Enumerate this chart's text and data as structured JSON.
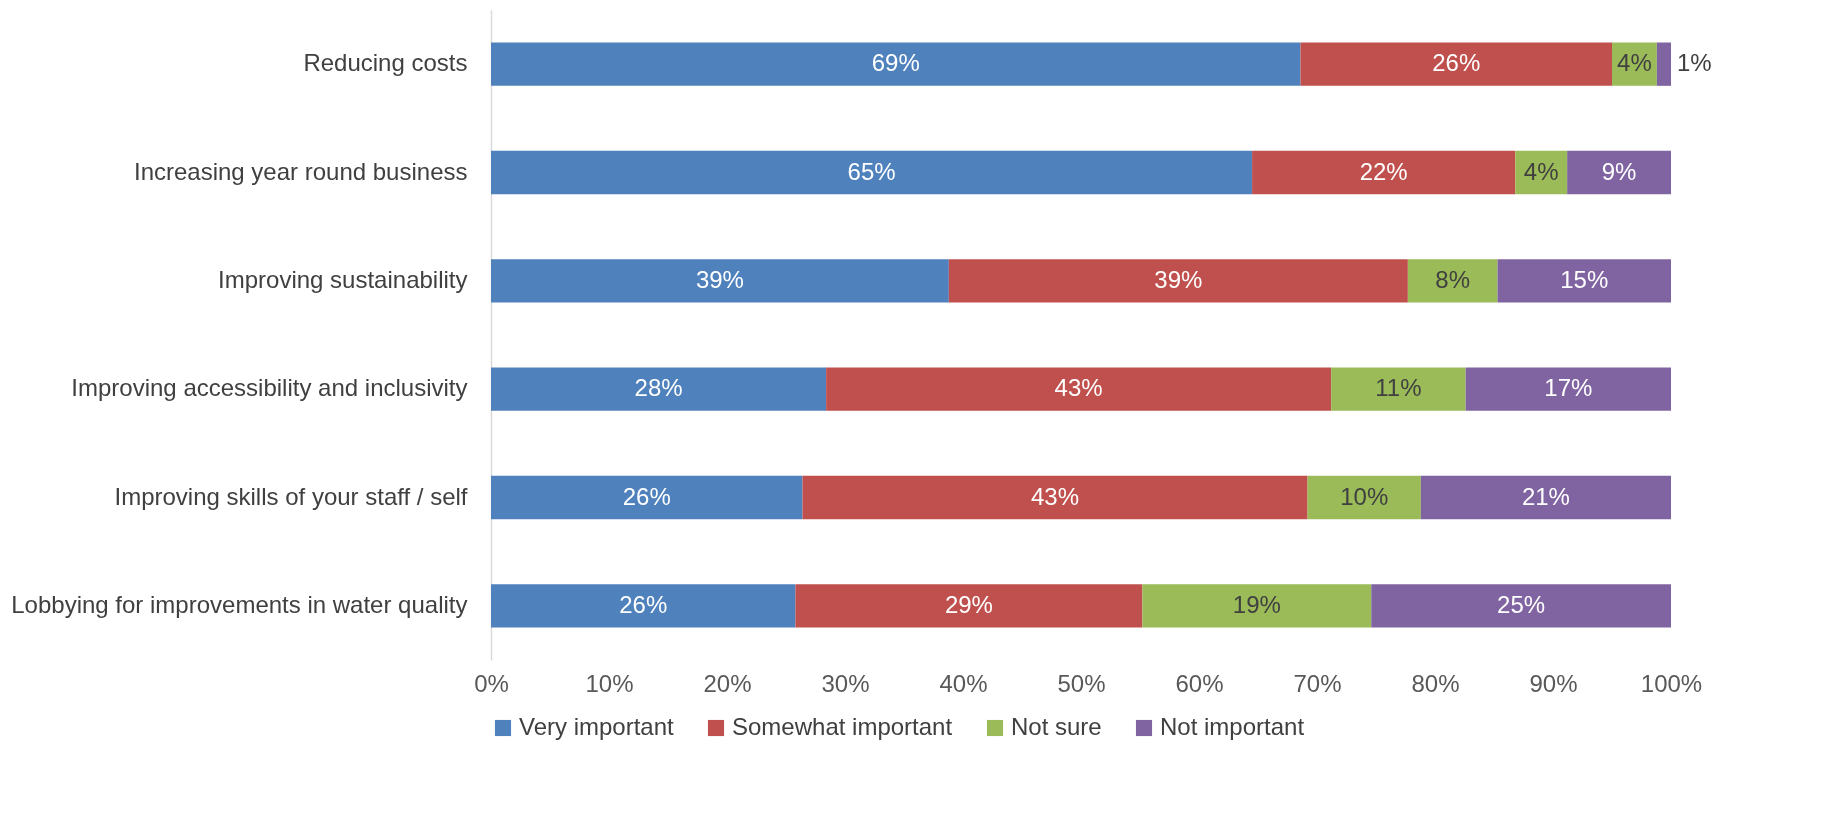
{
  "chart_data": {
    "type": "bar",
    "orientation": "horizontal",
    "stacked": true,
    "categories": [
      "Reducing costs",
      "Increasing year round business",
      "Improving sustainability",
      "Improving accessibility and inclusivity",
      "Improving skills of your staff / self",
      "Lobbying for improvements in water quality"
    ],
    "series": [
      {
        "name": "Very important",
        "color": "#4f81bd",
        "values": [
          68.6,
          64.5,
          38.8,
          28.4,
          26.4,
          25.8
        ],
        "value_labels": [
          "69%",
          "65%",
          "39%",
          "28%",
          "26%",
          "26%"
        ]
      },
      {
        "name": "Somewhat important",
        "color": "#c0504d",
        "values": [
          26.4,
          22.3,
          38.9,
          42.8,
          42.8,
          29.4
        ],
        "value_labels": [
          "26%",
          "22%",
          "39%",
          "43%",
          "43%",
          "29%"
        ]
      },
      {
        "name": "Not sure",
        "color": "#9bbb59",
        "values": [
          3.8,
          4.4,
          7.6,
          11.4,
          9.6,
          19.4
        ],
        "value_labels": [
          "4%",
          "4%",
          "8%",
          "11%",
          "10%",
          "19%"
        ]
      },
      {
        "name": "Not important",
        "color": "#8064a2",
        "values": [
          1.2,
          8.8,
          14.7,
          17.4,
          21.2,
          25.4
        ],
        "value_labels": [
          "1%",
          "9%",
          "15%",
          "17%",
          "21%",
          "25%"
        ]
      }
    ],
    "xlim": [
      0,
      100
    ],
    "xticks": [
      {
        "value": 0,
        "label": "0%"
      },
      {
        "value": 10,
        "label": "10%"
      },
      {
        "value": 20,
        "label": "20%"
      },
      {
        "value": 30,
        "label": "30%"
      },
      {
        "value": 40,
        "label": "40%"
      },
      {
        "value": 50,
        "label": "50%"
      },
      {
        "value": 60,
        "label": "60%"
      },
      {
        "value": 70,
        "label": "70%"
      },
      {
        "value": 80,
        "label": "80%"
      },
      {
        "value": 90,
        "label": "90%"
      },
      {
        "value": 100,
        "label": "100%"
      }
    ],
    "grid": false,
    "legend": "bottom"
  }
}
